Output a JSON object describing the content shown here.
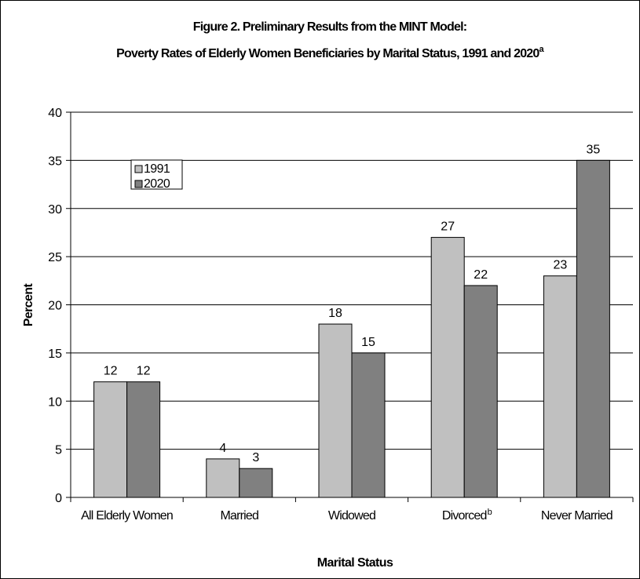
{
  "chart_data": {
    "type": "bar",
    "title": "Figure 2. Preliminary Results from the MINT Model:",
    "subtitle": "Poverty Rates of Elderly Women Beneficiaries by Marital Status, 1991 and 2020",
    "subtitle_superscript": "a",
    "xlabel": "Marital Status",
    "ylabel": "Percent",
    "ylim": [
      0,
      40
    ],
    "yticks": [
      "0",
      "5",
      "10",
      "15",
      "20",
      "25",
      "30",
      "35",
      "40"
    ],
    "categories": [
      "All Elderly Women",
      "Married",
      "Widowed",
      "Divorced",
      "Never Married"
    ],
    "category_superscripts": [
      "",
      "",
      "",
      "b",
      ""
    ],
    "series": [
      {
        "name": "1991",
        "values": [
          12,
          4,
          18,
          27,
          23
        ],
        "color": "#c0c0c0"
      },
      {
        "name": "2020",
        "values": [
          12,
          3,
          15,
          22,
          35
        ],
        "color": "#808080"
      }
    ],
    "grid": true,
    "legend_position": "top-left"
  }
}
